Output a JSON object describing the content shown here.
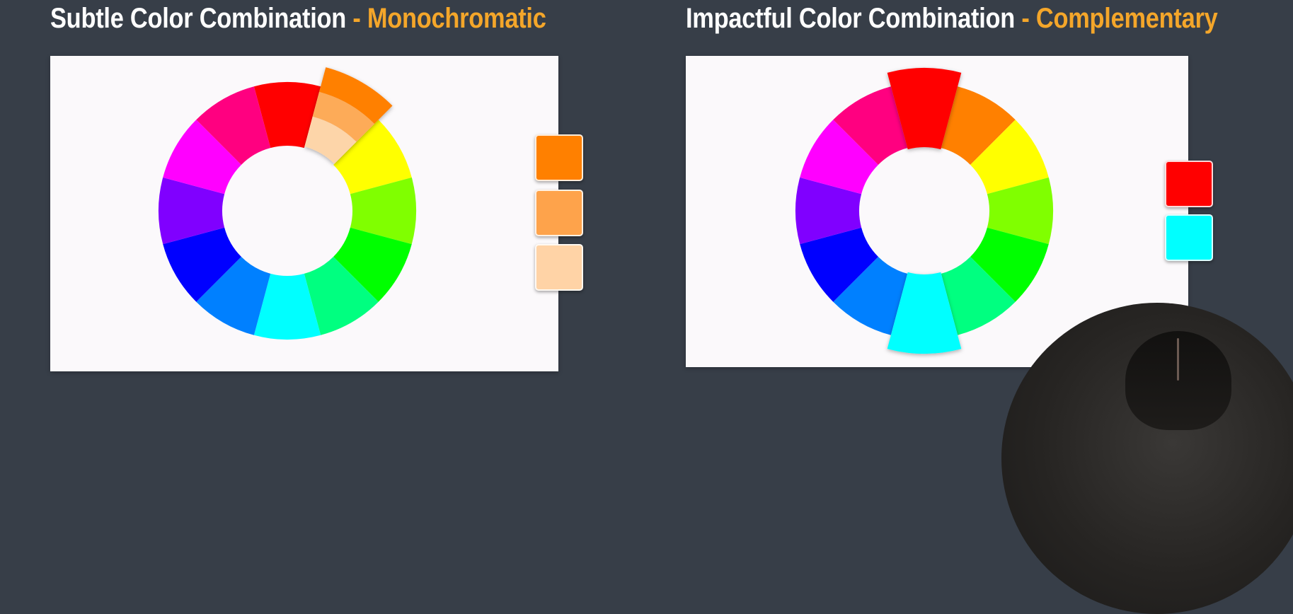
{
  "left": {
    "title_main": "Subtle Color Combination",
    "title_accent": " - Monochromatic",
    "highlight_segment": 1,
    "highlight_tints": [
      "#ff8000",
      "#fdab59",
      "#fdd5a9"
    ],
    "swatches": [
      "#ff8000",
      "#fea34b",
      "#ffd3a6"
    ]
  },
  "right": {
    "title_main": "Impactful Color Combination",
    "title_accent": " - Complementary",
    "highlight_segments": [
      0,
      6
    ],
    "swatches": [
      "#ff0000",
      "#00ffff"
    ]
  },
  "wheel_colors": [
    "#ff0000",
    "#ff8000",
    "#ffff00",
    "#80ff00",
    "#00ff00",
    "#00ff80",
    "#00ffff",
    "#0080ff",
    "#0000ff",
    "#8000ff",
    "#ff00ff",
    "#ff0080"
  ],
  "colors": {
    "background": "#373e48",
    "panel": "#fbf9fb",
    "accent": "#f4a62a"
  }
}
